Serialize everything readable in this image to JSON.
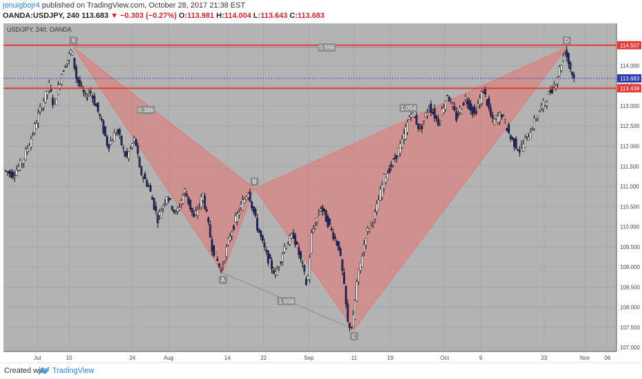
{
  "header": {
    "author": "jonuigbojr4",
    "published": "published on TradingView.com, October 28, 2017 21:38 EST",
    "symbol_interval": "OANDA:USDJPY, 240",
    "last": "113.683",
    "change": "−0.303 (−0.27%)",
    "open_label": "O:",
    "open": "113.981",
    "high_label": "H:",
    "high": "114.004",
    "low_label": "L:",
    "low": "113.643",
    "close_label": "C:",
    "close": "113.683"
  },
  "footer": {
    "created_with": "Created with",
    "brand": "TradingView"
  },
  "chart_data": {
    "type": "candlestick",
    "instrument_label": "USD/JPY, 240, OANDA",
    "background": "#b3b3b3",
    "grid": true,
    "ylim": [
      106.9,
      115.05
    ],
    "y_ticks": [
      "107.000",
      "107.500",
      "108.000",
      "108.500",
      "109.000",
      "109.500",
      "110.000",
      "110.500",
      "111.000",
      "111.500",
      "112.000",
      "112.500",
      "113.000",
      "113.500",
      "114.000"
    ],
    "x_ticks": [
      {
        "label": "Jul",
        "day": 3
      },
      {
        "label": "10",
        "day": 10
      },
      {
        "label": "24",
        "day": 24
      },
      {
        "label": "Aug",
        "day": 32
      },
      {
        "label": "14",
        "day": 45
      },
      {
        "label": "22",
        "day": 53
      },
      {
        "label": "Sep",
        "day": 63
      },
      {
        "label": "11",
        "day": 73
      },
      {
        "label": "19",
        "day": 81
      },
      {
        "label": "Oct",
        "day": 93
      },
      {
        "label": "9",
        "day": 101
      },
      {
        "label": "23",
        "day": 115
      },
      {
        "label": "Nov",
        "day": 124
      },
      {
        "label": "06",
        "day": 129
      }
    ],
    "x_range": [
      -4.5,
      131
    ],
    "horizontal_lines": [
      {
        "price": 114.507,
        "label": "114.507",
        "color": "#e53935"
      },
      {
        "price": 113.438,
        "label": "113.438",
        "color": "#e53935"
      },
      {
        "price": 113.683,
        "label": "113.683",
        "color": "#2b3aad",
        "dashed": true
      }
    ],
    "pattern": {
      "color": "#e57373",
      "points": [
        {
          "label": "X",
          "day": 11,
          "price": 114.45
        },
        {
          "label": "A",
          "day": 44,
          "price": 108.85
        },
        {
          "label": "B",
          "day": 51,
          "price": 110.95
        },
        {
          "label": "C",
          "day": 73,
          "price": 107.45
        },
        {
          "label": "D",
          "day": 120,
          "price": 114.45
        }
      ],
      "ratios": [
        {
          "label": "0.386",
          "day": 27,
          "price": 112.9
        },
        {
          "label": "1.658",
          "day": 58,
          "price": 108.15
        },
        {
          "label": "1.054",
          "day": 85,
          "price": 112.95
        },
        {
          "label": "0.996",
          "day": 67,
          "price": 114.45
        }
      ]
    },
    "price_path": [
      [
        -4,
        111.4
      ],
      [
        -2,
        111.3
      ],
      [
        0,
        111.6
      ],
      [
        2,
        112.2
      ],
      [
        4,
        112.9
      ],
      [
        6,
        113.5
      ],
      [
        7,
        113.0
      ],
      [
        9,
        113.9
      ],
      [
        11,
        114.4
      ],
      [
        12,
        113.7
      ],
      [
        14,
        113.2
      ],
      [
        15,
        113.4
      ],
      [
        17,
        112.8
      ],
      [
        19,
        112.0
      ],
      [
        21,
        112.4
      ],
      [
        23,
        111.7
      ],
      [
        25,
        112.2
      ],
      [
        26,
        111.4
      ],
      [
        28,
        111.0
      ],
      [
        30,
        110.2
      ],
      [
        32,
        110.8
      ],
      [
        34,
        110.3
      ],
      [
        36,
        110.9
      ],
      [
        38,
        110.2
      ],
      [
        40,
        110.8
      ],
      [
        42,
        109.5
      ],
      [
        44,
        108.9
      ],
      [
        46,
        109.8
      ],
      [
        48,
        110.4
      ],
      [
        50,
        110.9
      ],
      [
        52,
        110.0
      ],
      [
        54,
        109.3
      ],
      [
        56,
        108.8
      ],
      [
        58,
        109.5
      ],
      [
        60,
        109.8
      ],
      [
        62,
        109.0
      ],
      [
        63,
        108.5
      ],
      [
        64,
        109.8
      ],
      [
        66,
        110.5
      ],
      [
        68,
        110.0
      ],
      [
        70,
        109.5
      ],
      [
        71,
        108.7
      ],
      [
        72,
        107.6
      ],
      [
        73,
        107.5
      ],
      [
        74,
        108.6
      ],
      [
        76,
        109.8
      ],
      [
        78,
        110.3
      ],
      [
        80,
        111.2
      ],
      [
        82,
        111.6
      ],
      [
        84,
        112.1
      ],
      [
        86,
        112.9
      ],
      [
        88,
        112.4
      ],
      [
        90,
        113.0
      ],
      [
        92,
        112.6
      ],
      [
        94,
        113.3
      ],
      [
        96,
        112.7
      ],
      [
        98,
        113.2
      ],
      [
        100,
        112.8
      ],
      [
        102,
        113.4
      ],
      [
        104,
        112.6
      ],
      [
        106,
        112.8
      ],
      [
        108,
        112.2
      ],
      [
        110,
        111.9
      ],
      [
        112,
        112.3
      ],
      [
        114,
        112.8
      ],
      [
        116,
        113.2
      ],
      [
        118,
        113.6
      ],
      [
        119,
        114.0
      ],
      [
        120,
        114.4
      ],
      [
        121,
        114.0
      ],
      [
        122,
        113.68
      ]
    ]
  }
}
